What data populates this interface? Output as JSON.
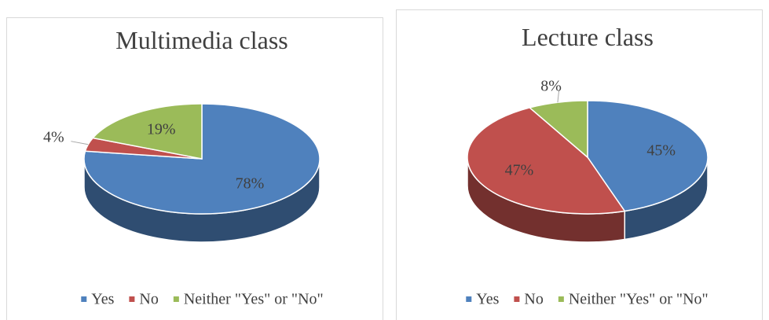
{
  "chart_data": [
    {
      "type": "pie",
      "title": "Multimedia class",
      "categories": [
        "Yes",
        "No",
        "Neither \"Yes\" or \"No\""
      ],
      "values": [
        78,
        4,
        19
      ],
      "value_labels": [
        "78%",
        "4%",
        "19%"
      ],
      "colors": [
        "#4f81bd",
        "#c0504d",
        "#9bbb59"
      ],
      "legend": "bottom"
    },
    {
      "type": "pie",
      "title": "Lecture class",
      "categories": [
        "Yes",
        "No",
        "Neither \"Yes\" or \"No\""
      ],
      "values": [
        45,
        47,
        8
      ],
      "value_labels": [
        "45%",
        "47%",
        "8%"
      ],
      "colors": [
        "#4f81bd",
        "#c0504d",
        "#9bbb59"
      ],
      "legend": "bottom"
    }
  ]
}
